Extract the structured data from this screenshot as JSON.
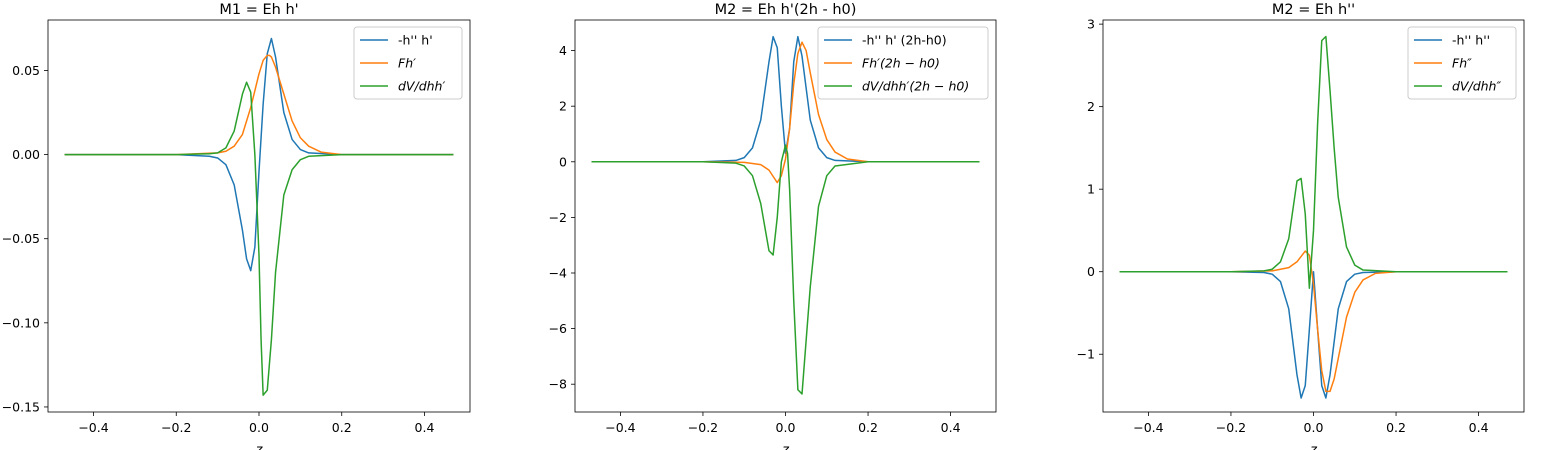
{
  "chart_data": [
    {
      "type": "line",
      "title": "M1 = Eh h'",
      "xlabel": "z",
      "ylabel": "",
      "xlim": [
        -0.51,
        0.51
      ],
      "ylim": [
        -0.153,
        0.08
      ],
      "xticks": [
        -0.4,
        -0.2,
        0.0,
        0.2,
        0.4
      ],
      "xtick_labels": [
        "−0.4",
        "−0.2",
        "0.0",
        "0.2",
        "0.4"
      ],
      "yticks": [
        -0.15,
        -0.1,
        -0.05,
        0.0,
        0.05
      ],
      "ytick_labels": [
        "−0.15",
        "−0.10",
        "−0.05",
        "0.00",
        "0.05"
      ],
      "grid": false,
      "legend_position": "top-right",
      "legend": [
        "-h'' h'",
        "Fh′",
        "dV/dhh′"
      ],
      "series": [
        {
          "name": "-h'' h'",
          "color": "#1f77b4",
          "x": [
            -0.47,
            -0.2,
            -0.12,
            -0.1,
            -0.08,
            -0.06,
            -0.04,
            -0.03,
            -0.02,
            -0.01,
            0.0,
            0.01,
            0.02,
            0.03,
            0.04,
            0.06,
            0.08,
            0.1,
            0.12,
            0.2,
            0.47
          ],
          "y": [
            0,
            0,
            -0.001,
            -0.002,
            -0.006,
            -0.018,
            -0.045,
            -0.062,
            -0.069,
            -0.055,
            -0.01,
            0.03,
            0.06,
            0.069,
            0.058,
            0.025,
            0.009,
            0.003,
            0.001,
            0,
            0
          ]
        },
        {
          "name": "Fh′",
          "color": "#ff7f0e",
          "x": [
            -0.47,
            -0.2,
            -0.1,
            -0.08,
            -0.06,
            -0.04,
            -0.02,
            0.0,
            0.01,
            0.02,
            0.025,
            0.03,
            0.04,
            0.06,
            0.08,
            0.1,
            0.12,
            0.15,
            0.2,
            0.47
          ],
          "y": [
            0,
            0,
            0.001,
            0.002,
            0.005,
            0.012,
            0.028,
            0.048,
            0.056,
            0.059,
            0.059,
            0.058,
            0.052,
            0.036,
            0.02,
            0.01,
            0.005,
            0.0015,
            0,
            0
          ]
        },
        {
          "name": "dV/dhh′",
          "color": "#2ca02c",
          "x": [
            -0.47,
            -0.2,
            -0.12,
            -0.1,
            -0.08,
            -0.06,
            -0.04,
            -0.03,
            -0.02,
            -0.01,
            0.0,
            0.005,
            0.01,
            0.02,
            0.03,
            0.04,
            0.06,
            0.08,
            0.1,
            0.12,
            0.2,
            0.47
          ],
          "y": [
            0,
            0,
            0.0005,
            0.001,
            0.004,
            0.014,
            0.036,
            0.043,
            0.037,
            0.0,
            -0.06,
            -0.11,
            -0.143,
            -0.14,
            -0.11,
            -0.07,
            -0.024,
            -0.009,
            -0.003,
            -0.001,
            0,
            0
          ]
        }
      ]
    },
    {
      "type": "line",
      "title": "M2 = Eh h'(2h - h0)",
      "xlabel": "z",
      "ylabel": "",
      "xlim": [
        -0.51,
        0.51
      ],
      "ylim": [
        -9.0,
        5.1
      ],
      "xticks": [
        -0.4,
        -0.2,
        0.0,
        0.2,
        0.4
      ],
      "xtick_labels": [
        "−0.4",
        "−0.2",
        "0.0",
        "0.2",
        "0.4"
      ],
      "yticks": [
        -8,
        -6,
        -4,
        -2,
        0,
        2,
        4
      ],
      "ytick_labels": [
        "−8",
        "−6",
        "−4",
        "−2",
        "0",
        "2",
        "4"
      ],
      "grid": false,
      "legend_position": "top-right",
      "legend": [
        "-h'' h' (2h-h0)",
        "Fh′(2h − h0)",
        "dV/dhh′(2h − h0)"
      ],
      "series": [
        {
          "name": "-h'' h' (2h-h0)",
          "color": "#1f77b4",
          "x": [
            -0.47,
            -0.2,
            -0.12,
            -0.1,
            -0.08,
            -0.06,
            -0.04,
            -0.03,
            -0.02,
            -0.01,
            0.0,
            0.01,
            0.02,
            0.03,
            0.04,
            0.06,
            0.08,
            0.1,
            0.12,
            0.2,
            0.47
          ],
          "y": [
            0,
            0,
            0.05,
            0.15,
            0.5,
            1.5,
            3.6,
            4.5,
            4.1,
            2.0,
            0.3,
            1.2,
            3.6,
            4.5,
            3.8,
            1.5,
            0.5,
            0.15,
            0.05,
            0,
            0
          ]
        },
        {
          "name": "Fh′(2h − h0)",
          "color": "#ff7f0e",
          "x": [
            -0.47,
            -0.2,
            -0.1,
            -0.06,
            -0.04,
            -0.02,
            -0.01,
            0.0,
            0.01,
            0.02,
            0.03,
            0.04,
            0.05,
            0.06,
            0.08,
            0.1,
            0.12,
            0.15,
            0.2,
            0.47
          ],
          "y": [
            0,
            0,
            -0.02,
            -0.1,
            -0.3,
            -0.75,
            -0.5,
            0.1,
            1.2,
            2.8,
            3.9,
            4.3,
            4.0,
            3.2,
            1.7,
            0.8,
            0.35,
            0.1,
            0,
            0
          ]
        },
        {
          "name": "dV/dhh′(2h − h0)",
          "color": "#2ca02c",
          "x": [
            -0.47,
            -0.2,
            -0.12,
            -0.1,
            -0.08,
            -0.06,
            -0.04,
            -0.03,
            -0.02,
            -0.01,
            0.0,
            0.005,
            0.01,
            0.02,
            0.03,
            0.04,
            0.06,
            0.08,
            0.1,
            0.12,
            0.2,
            0.47
          ],
          "y": [
            0,
            0,
            -0.05,
            -0.15,
            -0.5,
            -1.5,
            -3.2,
            -3.35,
            -2.0,
            0.0,
            0.6,
            0.3,
            -1.0,
            -5.0,
            -8.2,
            -8.35,
            -4.5,
            -1.6,
            -0.5,
            -0.15,
            0,
            0
          ]
        }
      ]
    },
    {
      "type": "line",
      "title": "M2 = Eh h''",
      "xlabel": "z",
      "ylabel": "",
      "xlim": [
        -0.51,
        0.51
      ],
      "ylim": [
        -1.7,
        3.05
      ],
      "xticks": [
        -0.4,
        -0.2,
        0.0,
        0.2,
        0.4
      ],
      "xtick_labels": [
        "−0.4",
        "−0.2",
        "0.0",
        "0.2",
        "0.4"
      ],
      "yticks": [
        -1,
        0,
        1,
        2,
        3
      ],
      "ytick_labels": [
        "−1",
        "0",
        "1",
        "2",
        "3"
      ],
      "grid": false,
      "legend_position": "top-right",
      "legend": [
        "-h'' h''",
        "Fh″",
        "dV/dhh″"
      ],
      "series": [
        {
          "name": "-h'' h''",
          "color": "#1f77b4",
          "x": [
            -0.47,
            -0.2,
            -0.12,
            -0.1,
            -0.08,
            -0.06,
            -0.04,
            -0.03,
            -0.02,
            -0.01,
            0.0,
            0.01,
            0.02,
            0.03,
            0.04,
            0.06,
            0.08,
            0.1,
            0.12,
            0.2,
            0.47
          ],
          "y": [
            0,
            0,
            -0.01,
            -0.03,
            -0.12,
            -0.45,
            -1.25,
            -1.53,
            -1.38,
            -0.7,
            0.0,
            -0.7,
            -1.38,
            -1.53,
            -1.25,
            -0.45,
            -0.12,
            -0.03,
            -0.01,
            0,
            0
          ]
        },
        {
          "name": "Fh″",
          "color": "#ff7f0e",
          "x": [
            -0.47,
            -0.2,
            -0.1,
            -0.06,
            -0.04,
            -0.02,
            -0.01,
            0.0,
            0.01,
            0.02,
            0.03,
            0.04,
            0.05,
            0.06,
            0.08,
            0.1,
            0.12,
            0.15,
            0.2,
            0.47
          ],
          "y": [
            0,
            0,
            0.01,
            0.05,
            0.12,
            0.25,
            0.2,
            -0.15,
            -0.7,
            -1.2,
            -1.45,
            -1.45,
            -1.3,
            -1.05,
            -0.55,
            -0.25,
            -0.1,
            -0.02,
            0,
            0
          ]
        },
        {
          "name": "dV/dhh″",
          "color": "#2ca02c",
          "x": [
            -0.47,
            -0.2,
            -0.12,
            -0.1,
            -0.08,
            -0.06,
            -0.04,
            -0.03,
            -0.02,
            -0.01,
            0.0,
            0.01,
            0.02,
            0.03,
            0.04,
            0.05,
            0.06,
            0.08,
            0.1,
            0.12,
            0.2,
            0.47
          ],
          "y": [
            0,
            0,
            0.01,
            0.03,
            0.12,
            0.4,
            1.1,
            1.13,
            0.7,
            -0.2,
            0.5,
            1.8,
            2.8,
            2.85,
            2.2,
            1.5,
            0.9,
            0.3,
            0.08,
            0.02,
            0,
            0
          ]
        }
      ]
    }
  ]
}
